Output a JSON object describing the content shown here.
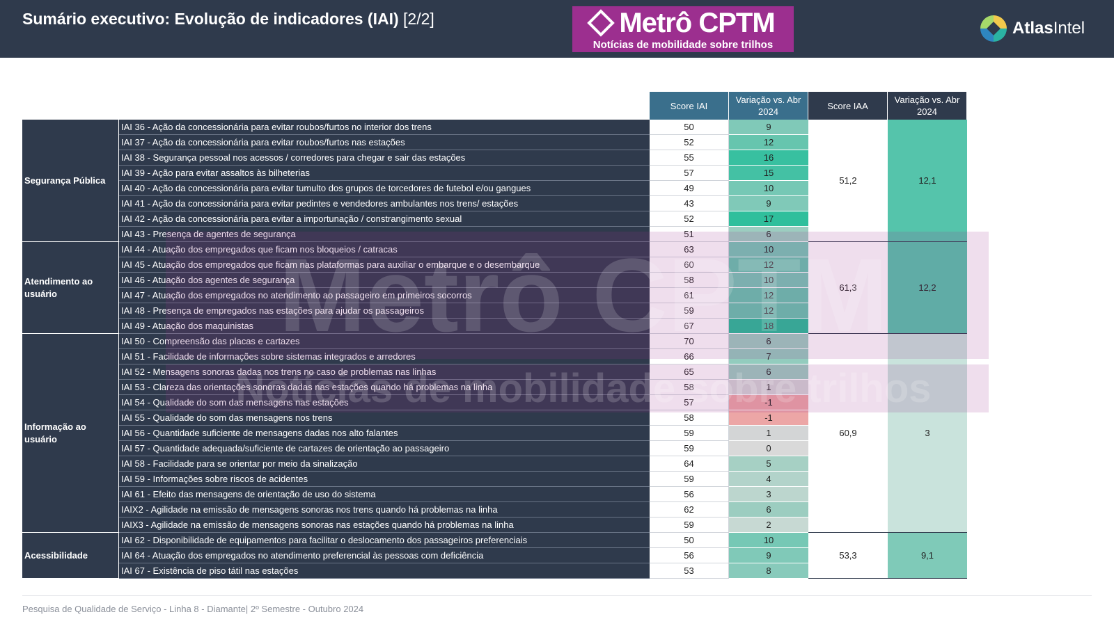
{
  "header": {
    "title": "Sumário executivo: Evolução de indicadores (IAI)",
    "title_suffix": "[2/2]",
    "brand_logo": {
      "main": "Metrô CPTM",
      "tagline": "Notícias de mobilidade sobre trilhos"
    },
    "company_logo": {
      "part1": "Atlas",
      "part2": "Intel"
    }
  },
  "table": {
    "headers": {
      "score_iai": "Score IAI",
      "var_iai": "Variação vs. Abr 2024",
      "score_iaa": "Score IAA",
      "var_iaa": "Variação vs. Abr 2024"
    },
    "groups": [
      {
        "name": "Segurança Pública",
        "iaa_score": "51,2",
        "iaa_var": "12,1",
        "iaa_color": "#55c4ab",
        "rows": [
          {
            "label": "IAI 36 - Ação da concessionária para evitar roubos/furtos no interior dos trens",
            "score": "50",
            "var": "9",
            "color": "#80c9b8"
          },
          {
            "label": "IAI 37 - Ação da concessionária para evitar roubos/furtos nas estações",
            "score": "52",
            "var": "12",
            "color": "#66c5ae"
          },
          {
            "label": "IAI 38 - Segurança pessoal nos acessos / corredores para chegar e sair das estações",
            "score": "55",
            "var": "16",
            "color": "#38c0a0"
          },
          {
            "label": "IAI 39 - Ação para evitar assaltos às bilheterias",
            "score": "57",
            "var": "15",
            "color": "#44c1a4"
          },
          {
            "label": "IAI 40 - Ação da concessionária para evitar tumulto dos grupos de torcedores de futebol e/ou gangues",
            "score": "49",
            "var": "10",
            "color": "#76c8b5"
          },
          {
            "label": "IAI 41 - Ação da concessionária para evitar pedintes e vendedores ambulantes nos trens/ estações",
            "score": "43",
            "var": "9",
            "color": "#80c9b8"
          },
          {
            "label": "IAI 42 - Ação da concessionária para evitar a importunação / constrangimento sexual",
            "score": "52",
            "var": "17",
            "color": "#30bf9c"
          },
          {
            "label": "IAI 43 - Presença de agentes de segurança",
            "score": "51",
            "var": "6",
            "color": "#9ccdc0"
          }
        ]
      },
      {
        "name": "Atendimento ao usuário",
        "iaa_score": "61,3",
        "iaa_var": "12,2",
        "iaa_color": "#55c4ab",
        "rows": [
          {
            "label": "IAI 44 - Atuação dos empregados que ficam nos bloqueios / catracas",
            "score": "63",
            "var": "10",
            "color": "#76c8b5"
          },
          {
            "label": "IAI 45 - Atuação dos empregados que ficam nas plataformas para auxiliar o embarque e o desembarque",
            "score": "60",
            "var": "12",
            "color": "#66c5ae"
          },
          {
            "label": "IAI 46 - Atuação dos agentes de segurança",
            "score": "58",
            "var": "10",
            "color": "#76c8b5"
          },
          {
            "label": "IAI 47 - Atuação dos empregados no atendimento ao passageiro em primeiros socorros",
            "score": "61",
            "var": "12",
            "color": "#66c5ae"
          },
          {
            "label": "IAI 48 - Presença de empregados nas estações para ajudar os passageiros",
            "score": "59",
            "var": "12",
            "color": "#66c5ae"
          },
          {
            "label": "IAI 49 - Atuação dos maquinistas",
            "score": "67",
            "var": "18",
            "color": "#26bd98"
          }
        ]
      },
      {
        "name": "Informação ao usuário",
        "iaa_score": "60,9",
        "iaa_var": "3",
        "iaa_color": "#c9e3dc",
        "rows": [
          {
            "label": "IAI 50 - Compreensão das placas e cartazes",
            "score": "70",
            "var": "6",
            "color": "#9ccdc0"
          },
          {
            "label": "IAI 51 - Facilidade de informações sobre sistemas integrados e arredores",
            "score": "66",
            "var": "7",
            "color": "#93ccbe"
          },
          {
            "label": "IAI 52 - Mensagens sonoras dadas nos trens no caso de problemas nas linhas",
            "score": "65",
            "var": "6",
            "color": "#9ccdc0"
          },
          {
            "label": "IAI 53 - Clareza das orientações sonoras dadas nas estações quando há problemas na linha",
            "score": "58",
            "var": "1",
            "color": "#d3d5d6"
          },
          {
            "label": "IAI 54 - Qualidade do som das mensagens nas estações",
            "score": "57",
            "var": "-1",
            "color": "#eca6a6"
          },
          {
            "label": "IAI 55 - Qualidade do som das mensagens nos trens",
            "score": "58",
            "var": "-1",
            "color": "#eca6a6"
          },
          {
            "label": "IAI 56 - Quantidade suficiente de mensagens dadas nos alto falantes",
            "score": "59",
            "var": "1",
            "color": "#d3d5d6"
          },
          {
            "label": "IAI 57 - Quantidade adequada/suficiente de cartazes de orientação ao passageiro",
            "score": "59",
            "var": "0",
            "color": "#d9d9d9"
          },
          {
            "label": "IAI 58 - Facilidade para se orientar por meio da sinalização",
            "score": "64",
            "var": "5",
            "color": "#a6d0c4"
          },
          {
            "label": "IAI 59 - Informações sobre riscos de acidentes",
            "score": "59",
            "var": "4",
            "color": "#b2d3ca"
          },
          {
            "label": "IAI 61 - Efeito das mensagens de orientação de uso do sistema",
            "score": "56",
            "var": "3",
            "color": "#bcd6ce"
          },
          {
            "label": "IAIX2 - Agilidade na emissão de mensagens sonoras nos trens quando há problemas na linha",
            "score": "62",
            "var": "6",
            "color": "#9ccdc0"
          },
          {
            "label": "IAIX3 - Agilidade na emissão de mensagens sonoras nas estações quando há problemas na linha",
            "score": "59",
            "var": "2",
            "color": "#c7d9d3"
          }
        ]
      },
      {
        "name": "Acessibilidade",
        "iaa_score": "53,3",
        "iaa_var": "9,1",
        "iaa_color": "#7fcab8",
        "rows": [
          {
            "label": "IAI 62 - Disponibilidade de equipamentos para facilitar o deslocamento dos passageiros preferenciais",
            "score": "50",
            "var": "10",
            "color": "#76c8b5"
          },
          {
            "label": "IAI 64 - Atuação dos empregados no atendimento preferencial às pessoas com deficiência",
            "score": "56",
            "var": "9",
            "color": "#80c9b8"
          },
          {
            "label": "IAI 67 - Existência de piso tátil nas estações",
            "score": "53",
            "var": "8",
            "color": "#88cabb"
          }
        ]
      }
    ]
  },
  "watermark": {
    "line1": "Metrô CPTM",
    "line2": "Notícias de mobilidade sobre trilhos"
  },
  "footer": "Pesquisa de Qualidade de Serviço - Linha 8 - Diamante| 2º Semestre - Outubro 2024"
}
